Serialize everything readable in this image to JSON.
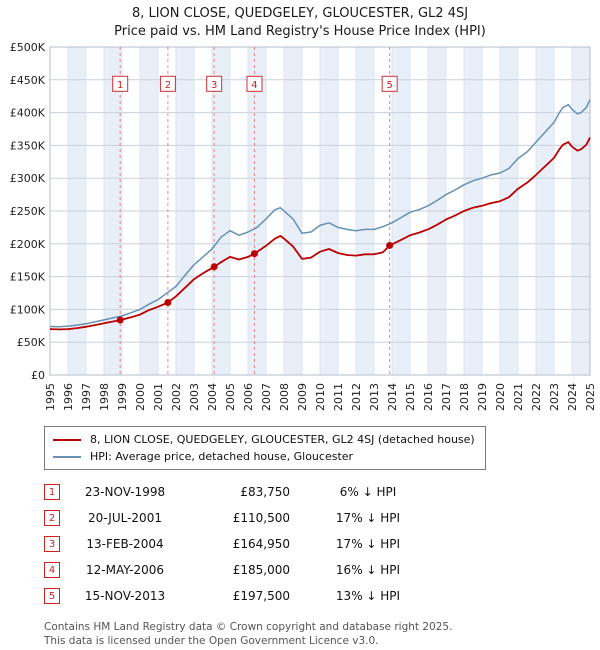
{
  "title": {
    "line1": "8, LION CLOSE, QUEDGELEY, GLOUCESTER, GL2 4SJ",
    "line2": "Price paid vs. HM Land Registry's House Price Index (HPI)"
  },
  "chart_data": {
    "type": "line",
    "title": "Price paid vs. HM Land Registry's House Price Index (HPI)",
    "xlabel": "",
    "ylabel": "",
    "xlim": [
      1995,
      2025
    ],
    "ylim": [
      0,
      500000
    ],
    "ytick_step": 50000,
    "ytick_labels": [
      "£0",
      "£50K",
      "£100K",
      "£150K",
      "£200K",
      "£250K",
      "£300K",
      "£350K",
      "£400K",
      "£450K",
      "£500K"
    ],
    "grid": true,
    "band_color": "#e9eff9",
    "sale_label_y": 450000,
    "series": [
      {
        "name": "8, LION CLOSE, QUEDGELEY, GLOUCESTER, GL2 4SJ (detached house)",
        "color": "#bb0000",
        "x": [
          1995,
          1995.5,
          1996,
          1996.5,
          1997,
          1997.5,
          1998,
          1998.5,
          1998.9,
          1999.5,
          2000,
          2000.5,
          2001,
          2001.55,
          2002,
          2002.5,
          2003,
          2003.5,
          2004.12,
          2004.5,
          2005,
          2005.5,
          2006,
          2006.36,
          2007,
          2007.5,
          2007.8,
          2008,
          2008.5,
          2009,
          2009.5,
          2010,
          2010.5,
          2011,
          2011.5,
          2012,
          2012.5,
          2013,
          2013.5,
          2013.87,
          2014.5,
          2015,
          2015.5,
          2016,
          2016.5,
          2017,
          2017.5,
          2018,
          2018.5,
          2019,
          2019.5,
          2020,
          2020.5,
          2021,
          2021.5,
          2022,
          2022.5,
          2023,
          2023.3,
          2023.5,
          2023.8,
          2024,
          2024.3,
          2024.5,
          2024.8,
          2025
        ],
        "values": [
          70000,
          69500,
          70000,
          71500,
          73500,
          76000,
          79000,
          81500,
          83750,
          88000,
          92000,
          99000,
          104000,
          110500,
          120000,
          133000,
          146000,
          155000,
          164950,
          172000,
          180000,
          176000,
          180000,
          185000,
          197000,
          208000,
          212000,
          208000,
          196000,
          177000,
          179000,
          188000,
          192000,
          186000,
          183000,
          182000,
          184000,
          184000,
          187000,
          197500,
          206000,
          213000,
          217000,
          222000,
          229000,
          237000,
          243000,
          250000,
          255000,
          258000,
          262000,
          265000,
          271000,
          284000,
          293000,
          305000,
          318000,
          331000,
          344000,
          351000,
          355000,
          348000,
          342000,
          344000,
          351000,
          362000
        ]
      },
      {
        "name": "HPI: Average price, detached house, Gloucester",
        "color": "#6690b4",
        "x": [
          1995,
          1995.5,
          1996,
          1996.5,
          1997,
          1997.5,
          1998,
          1998.5,
          1999,
          1999.5,
          2000,
          2000.5,
          2001,
          2001.5,
          2002,
          2002.5,
          2003,
          2003.5,
          2004,
          2004.5,
          2005,
          2005.5,
          2006,
          2006.5,
          2007,
          2007.5,
          2007.8,
          2008,
          2008.5,
          2009,
          2009.5,
          2010,
          2010.5,
          2011,
          2011.5,
          2012,
          2012.5,
          2013,
          2013.5,
          2014,
          2014.5,
          2015,
          2015.5,
          2016,
          2016.5,
          2017,
          2017.5,
          2018,
          2018.5,
          2019,
          2019.5,
          2020,
          2020.5,
          2021,
          2021.5,
          2022,
          2022.5,
          2023,
          2023.3,
          2023.5,
          2023.8,
          2024,
          2024.3,
          2024.5,
          2024.8,
          2025
        ],
        "values": [
          74000,
          73500,
          74500,
          76000,
          78000,
          81000,
          84000,
          87000,
          90000,
          95000,
          100000,
          108000,
          115000,
          125000,
          135000,
          152000,
          168000,
          180000,
          192000,
          210000,
          220000,
          213000,
          218000,
          225000,
          238000,
          252000,
          255000,
          250000,
          238000,
          216000,
          218000,
          228000,
          232000,
          225000,
          222000,
          220000,
          222000,
          222000,
          226000,
          232000,
          240000,
          248000,
          252000,
          258000,
          266000,
          275000,
          282000,
          290000,
          296000,
          300000,
          305000,
          308000,
          315000,
          330000,
          340000,
          355000,
          370000,
          385000,
          400000,
          408000,
          412000,
          405000,
          398000,
          400000,
          408000,
          420000
        ]
      }
    ],
    "sales": [
      {
        "n": 1,
        "x": 1998.9,
        "value": 83750
      },
      {
        "n": 2,
        "x": 2001.55,
        "value": 110500
      },
      {
        "n": 3,
        "x": 2004.12,
        "value": 164950
      },
      {
        "n": 4,
        "x": 2006.36,
        "value": 185000
      },
      {
        "n": 5,
        "x": 2013.87,
        "value": 197500
      }
    ]
  },
  "legend": {
    "items": [
      {
        "label": "8, LION CLOSE, QUEDGELEY, GLOUCESTER, GL2 4SJ (detached house)",
        "color": "#bb0000"
      },
      {
        "label": "HPI: Average price, detached house, Gloucester",
        "color": "#6690b4"
      }
    ]
  },
  "table": {
    "rows": [
      {
        "num": "1",
        "date": "23-NOV-1998",
        "price": "£83,750",
        "hpi": "6% ↓ HPI"
      },
      {
        "num": "2",
        "date": "20-JUL-2001",
        "price": "£110,500",
        "hpi": "17% ↓ HPI"
      },
      {
        "num": "3",
        "date": "13-FEB-2004",
        "price": "£164,950",
        "hpi": "17% ↓ HPI"
      },
      {
        "num": "4",
        "date": "12-MAY-2006",
        "price": "£185,000",
        "hpi": "16% ↓ HPI"
      },
      {
        "num": "5",
        "date": "15-NOV-2013",
        "price": "£197,500",
        "hpi": "13% ↓ HPI"
      }
    ]
  },
  "footer": {
    "line1": "Contains HM Land Registry data © Crown copyright and database right 2025.",
    "line2": "This data is licensed under the Open Government Licence v3.0."
  }
}
